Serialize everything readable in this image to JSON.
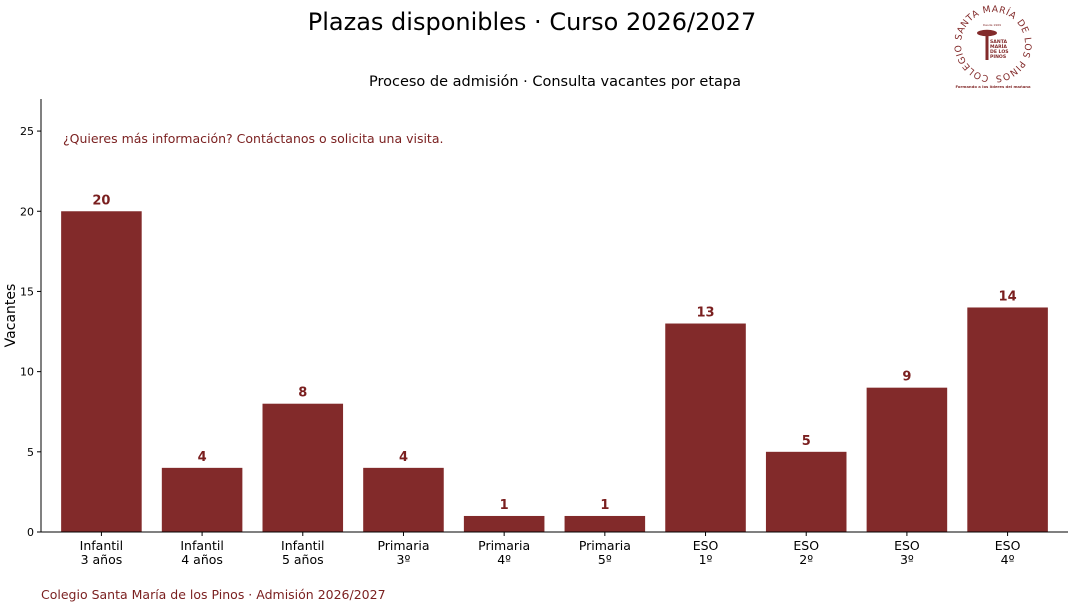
{
  "header": {
    "title": "Plazas disponibles · Curso 2026/2027",
    "subtitle": "Proceso de admisión · Consulta vacantes por etapa"
  },
  "logo": {
    "ring_text": "COLEGIO SANTA MARÍA DE LOS PINOS",
    "center_small": "Desde 1969",
    "center_text": [
      "SANTA",
      "MARÍA",
      "DE LOS",
      "PINOS"
    ],
    "tagline": "Formando a los líderes del mañana",
    "icon": "pine-tree-icon"
  },
  "footer": {
    "text": "Colegio Santa María de los Pinos · Admisión 2026/2027"
  },
  "colors": {
    "bar": "#822a2a",
    "accent": "#7a1f1f",
    "axis": "#000000"
  },
  "chart_data": {
    "type": "bar",
    "categories": [
      [
        "Infantil",
        "3 años"
      ],
      [
        "Infantil",
        "4 años"
      ],
      [
        "Infantil",
        "5 años"
      ],
      [
        "Primaria",
        "3º"
      ],
      [
        "Primaria",
        "4º"
      ],
      [
        "Primaria",
        "5º"
      ],
      [
        "ESO",
        "1º"
      ],
      [
        "ESO",
        "2º"
      ],
      [
        "ESO",
        "3º"
      ],
      [
        "ESO",
        "4º"
      ]
    ],
    "values": [
      20,
      4,
      8,
      4,
      1,
      1,
      13,
      5,
      9,
      14
    ],
    "ylabel": "Vacantes",
    "ylim": [
      0,
      27
    ],
    "yticks": [
      0,
      5,
      10,
      15,
      20,
      25
    ],
    "annotation": "¿Quieres más información? Contáctanos o solicita una visita.",
    "grid": false,
    "data_labels": true
  }
}
